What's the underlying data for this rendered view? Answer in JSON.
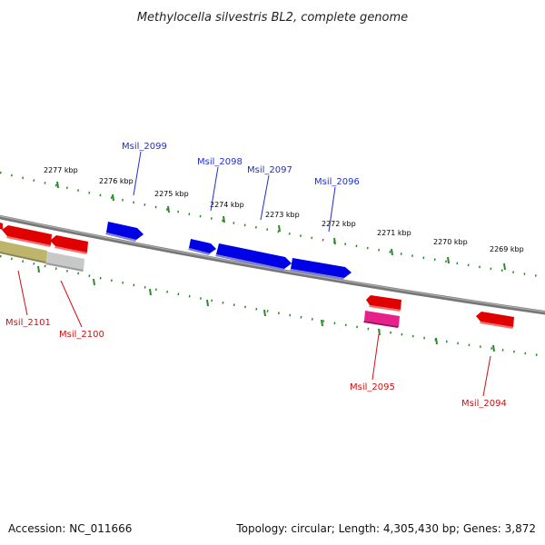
{
  "title": "Methylocella silvestris BL2, complete genome",
  "accession": "Accession: NC_011666",
  "topology_info": "Topology: circular; Length: 4,305,430 bp; Genes: 3,872",
  "kbp_labels": [
    "2277 kbp",
    "2276 kbp",
    "2275 kbp",
    "2274 kbp",
    "2273 kbp",
    "2272 kbp",
    "2271 kbp",
    "2270 kbp",
    "2269 kbp"
  ],
  "upper_genes": [
    "Msil_2099",
    "Msil_2098",
    "Msil_2097",
    "Msil_2096"
  ],
  "lower_genes": [
    "Msil_2101",
    "Msil_2100",
    "Msil_2095",
    "Msil_2094"
  ],
  "colors": {
    "backbone": "#7a7a7a",
    "ticks": "#2a8a2a",
    "forward_gene": "#0000e0",
    "reverse_gene": "#e00000",
    "highlight_gene": "#e0208a",
    "pseudo_gene": "#bdb56a",
    "grey_gene": "#bbbbbb",
    "upper_label": "#1f2fd0",
    "lower_label": "#d01010"
  }
}
